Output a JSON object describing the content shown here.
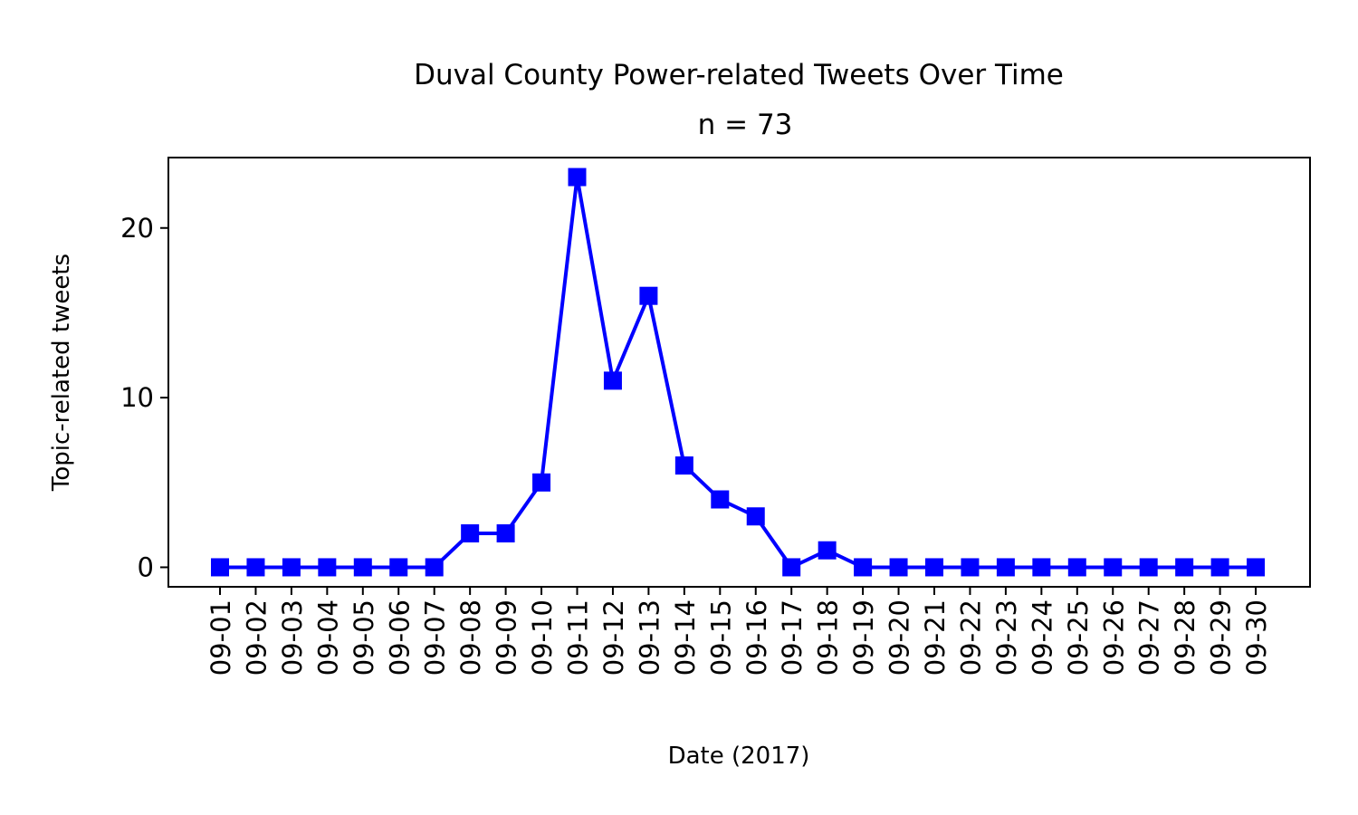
{
  "chart_data": {
    "type": "line",
    "title": "Duval County Power-related Tweets Over Time",
    "subtitle": "n = 73",
    "xlabel": "Date (2017)",
    "ylabel": "Topic-related tweets",
    "categories": [
      "09-01",
      "09-02",
      "09-03",
      "09-04",
      "09-05",
      "09-06",
      "09-07",
      "09-08",
      "09-09",
      "09-10",
      "09-11",
      "09-12",
      "09-13",
      "09-14",
      "09-15",
      "09-16",
      "09-17",
      "09-18",
      "09-19",
      "09-20",
      "09-21",
      "09-22",
      "09-23",
      "09-24",
      "09-25",
      "09-26",
      "09-27",
      "09-28",
      "09-29",
      "09-30"
    ],
    "series": [
      {
        "values": [
          0,
          0,
          0,
          0,
          0,
          0,
          0,
          2,
          2,
          5,
          23,
          11,
          16,
          6,
          4,
          3,
          0,
          1,
          0,
          0,
          0,
          0,
          0,
          0,
          0,
          0,
          0,
          0,
          0,
          0
        ],
        "color": "#0000ff",
        "marker": "square"
      }
    ],
    "yticks": [
      0,
      10,
      20
    ],
    "ylim": [
      -1.15,
      24.15
    ],
    "grid": false,
    "legend": "none"
  }
}
